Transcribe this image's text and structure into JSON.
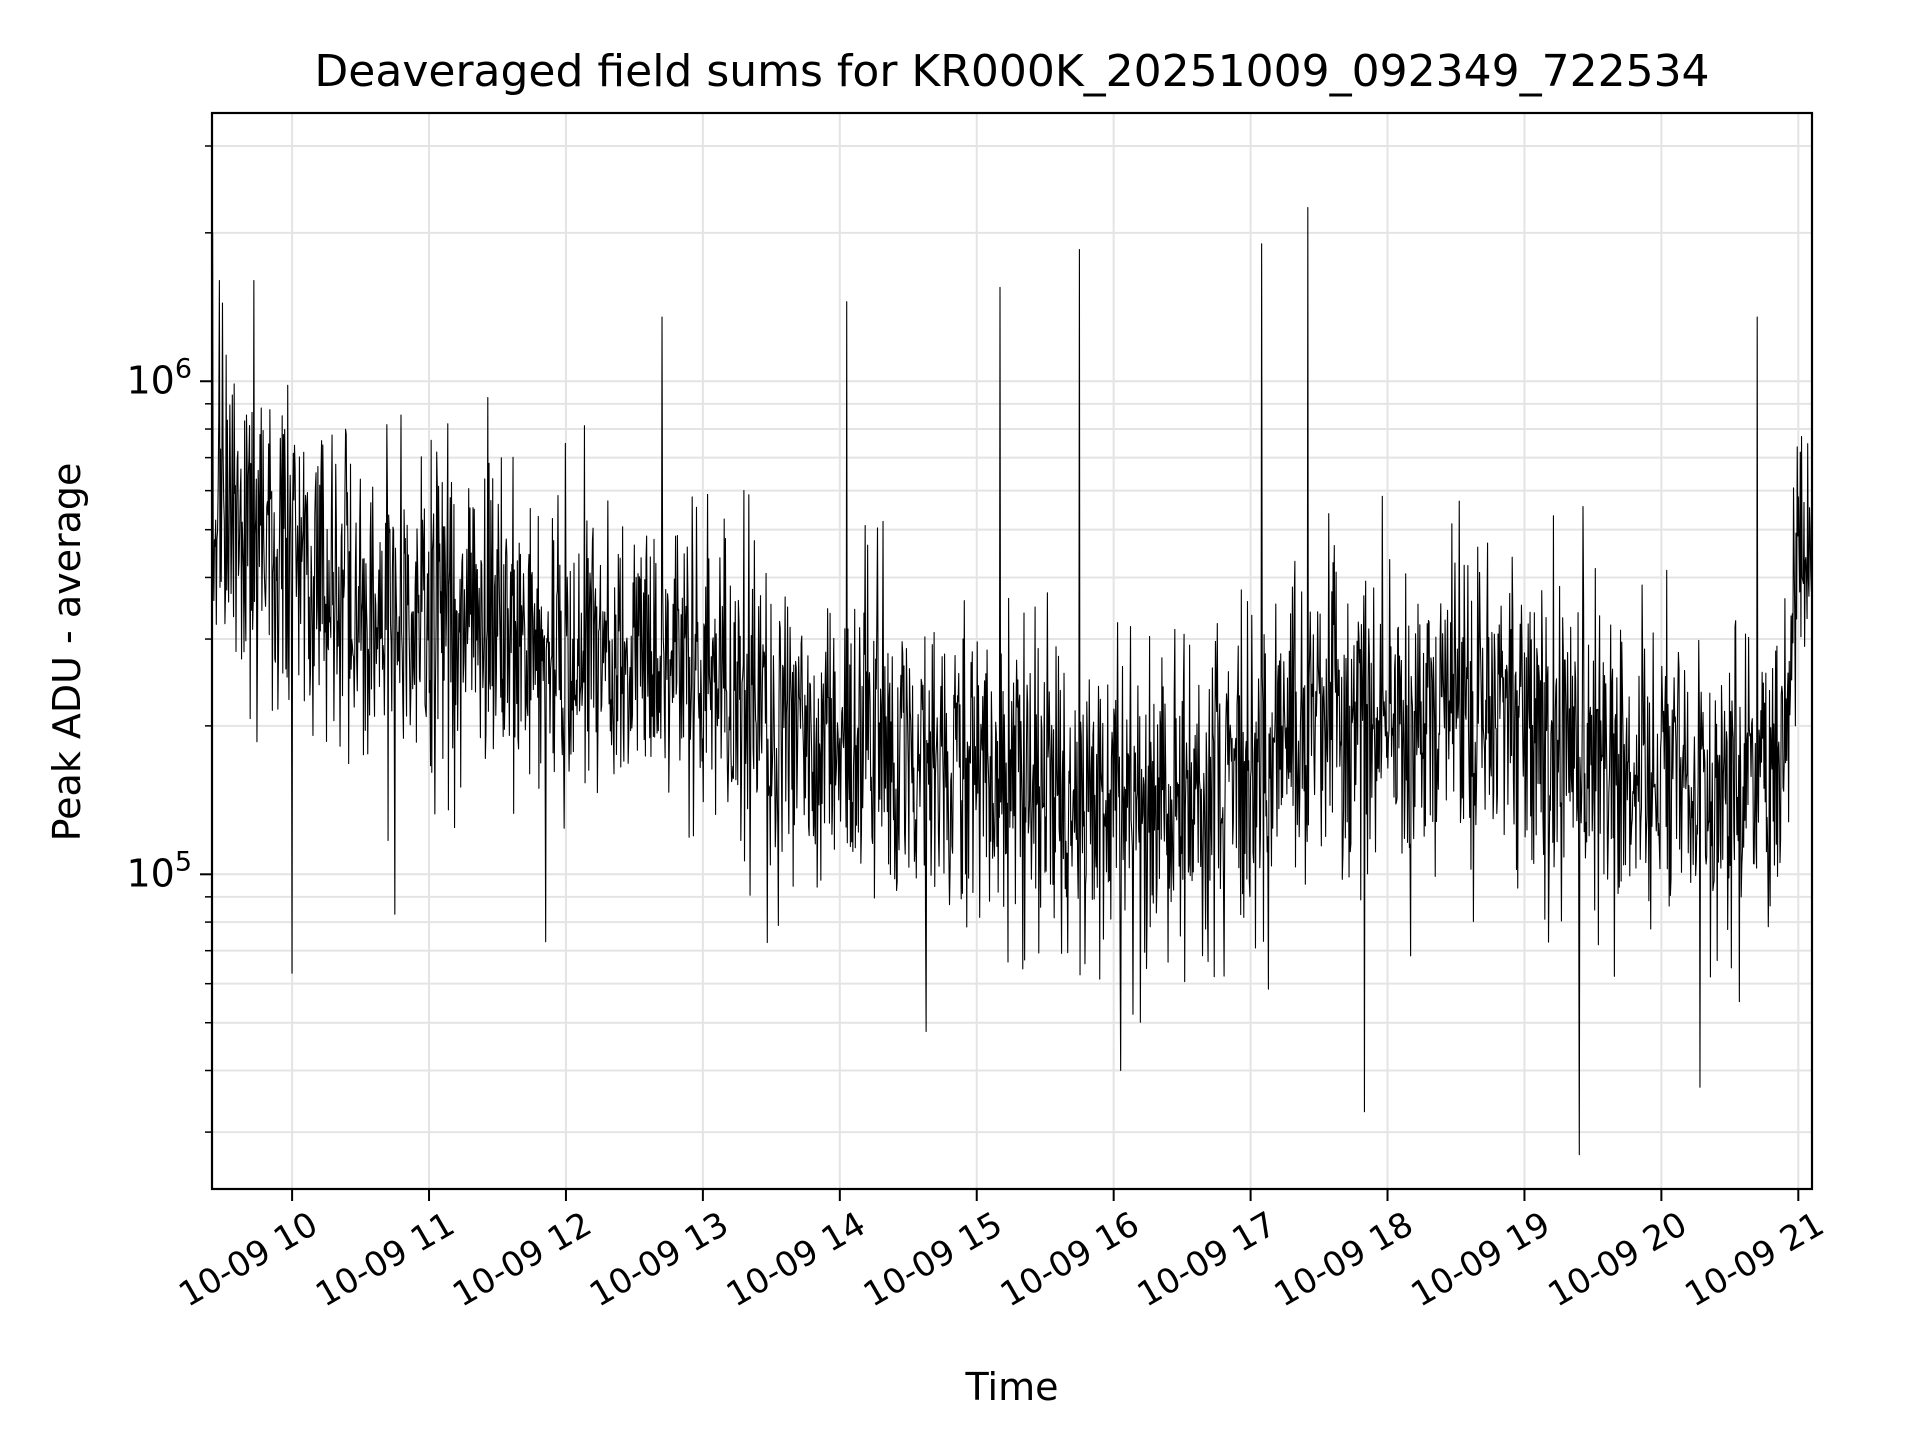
{
  "chart_data": {
    "type": "line",
    "title": "Deaveraged field sums for KR000K_20251009_092349_722534",
    "xlabel": "Time",
    "ylabel": "Peak ADU - average",
    "yscale": "log",
    "ylim": [
      23000,
      3500000
    ],
    "xlim_hours": [
      9.415,
      21.1
    ],
    "grid": true,
    "legend": "none",
    "x_ticks": [
      {
        "hour": 10,
        "label": "10-09 10"
      },
      {
        "hour": 11,
        "label": "10-09 11"
      },
      {
        "hour": 12,
        "label": "10-09 12"
      },
      {
        "hour": 13,
        "label": "10-09 13"
      },
      {
        "hour": 14,
        "label": "10-09 14"
      },
      {
        "hour": 15,
        "label": "10-09 15"
      },
      {
        "hour": 16,
        "label": "10-09 16"
      },
      {
        "hour": 17,
        "label": "10-09 17"
      },
      {
        "hour": 18,
        "label": "10-09 18"
      },
      {
        "hour": 19,
        "label": "10-09 19"
      },
      {
        "hour": 20,
        "label": "10-09 20"
      },
      {
        "hour": 21,
        "label": "10-09 21"
      }
    ],
    "y_ticks": [
      {
        "value": 100000,
        "base": "10",
        "exp": "5"
      },
      {
        "value": 1000000,
        "base": "10",
        "exp": "6"
      }
    ],
    "series": [
      {
        "name": "deaveraged field sum",
        "color": "#000000",
        "sample_count": 2600,
        "trend_hours": [
          9.415,
          10.0,
          11.0,
          12.0,
          13.0,
          13.5,
          14.0,
          15.0,
          15.5,
          16.0,
          16.5,
          17.0,
          17.5,
          18.0,
          19.0,
          19.5,
          20.0,
          20.5,
          20.85,
          21.0,
          21.1
        ],
        "trend_values": [
          550000,
          430000,
          340000,
          290000,
          250000,
          210000,
          180000,
          175000,
          165000,
          140000,
          130000,
          150000,
          220000,
          190000,
          210000,
          170000,
          160000,
          150000,
          160000,
          450000,
          500000
        ],
        "noise_log10_sd": 0.26,
        "spikes": [
          {
            "hour": 9.42,
            "value": 2000000
          },
          {
            "hour": 9.47,
            "value": 1600000
          },
          {
            "hour": 9.72,
            "value": 1600000
          },
          {
            "hour": 10.0,
            "value": 63000
          },
          {
            "hour": 10.75,
            "value": 83000
          },
          {
            "hour": 11.85,
            "value": 73000
          },
          {
            "hour": 12.7,
            "value": 1350000
          },
          {
            "hour": 14.05,
            "value": 1450000
          },
          {
            "hour": 14.63,
            "value": 48000
          },
          {
            "hour": 15.17,
            "value": 1550000
          },
          {
            "hour": 15.75,
            "value": 1850000
          },
          {
            "hour": 16.05,
            "value": 40000
          },
          {
            "hour": 17.08,
            "value": 1900000
          },
          {
            "hour": 17.42,
            "value": 2250000
          },
          {
            "hour": 17.83,
            "value": 33000
          },
          {
            "hour": 19.4,
            "value": 27000
          },
          {
            "hour": 20.28,
            "value": 37000
          },
          {
            "hour": 20.7,
            "value": 1350000
          }
        ]
      }
    ]
  }
}
